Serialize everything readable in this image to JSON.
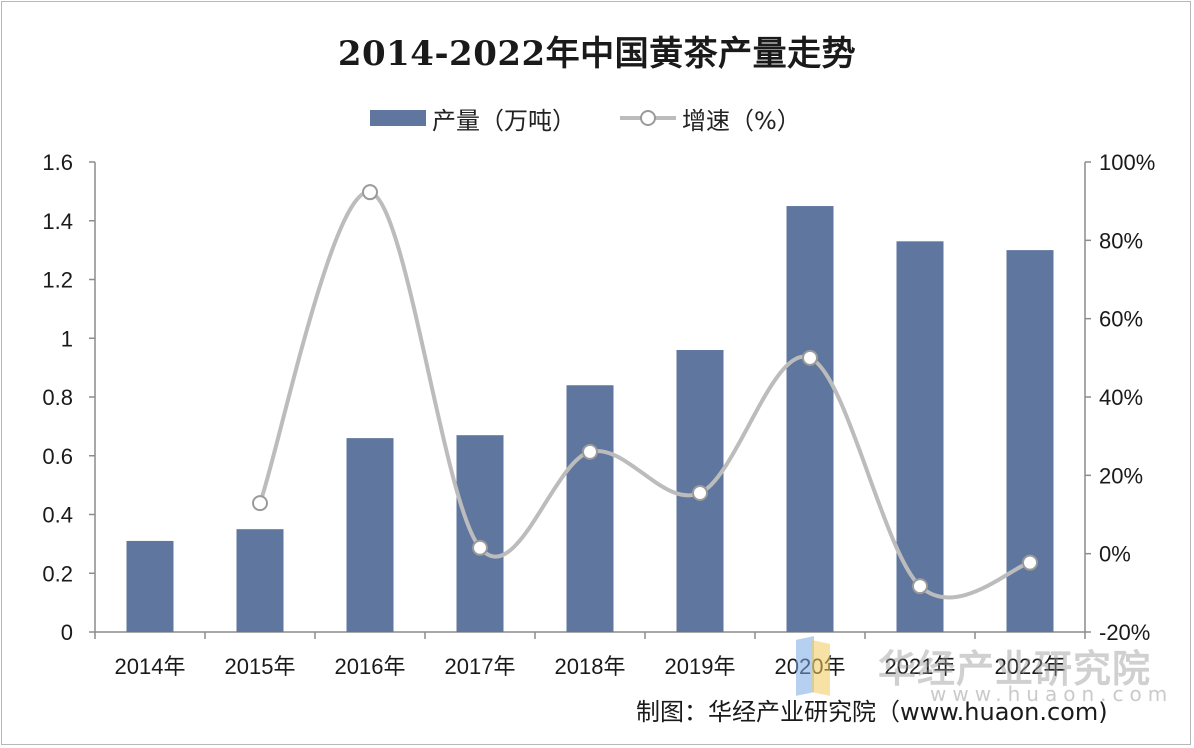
{
  "chart_data": {
    "type": "bar",
    "title": "2014-2022年中国黄茶产量走势",
    "categories": [
      "2014年",
      "2015年",
      "2016年",
      "2017年",
      "2018年",
      "2019年",
      "2020年",
      "2021年",
      "2022年"
    ],
    "series": [
      {
        "name": "产量（万吨）",
        "type": "bar",
        "axis": "left",
        "color": "#5f769f",
        "values": [
          0.31,
          0.35,
          0.66,
          0.67,
          0.84,
          0.96,
          1.45,
          1.33,
          1.3
        ]
      },
      {
        "name": "增速（%）",
        "type": "line",
        "smooth": true,
        "axis": "right",
        "color": "#bcbcbc",
        "values": [
          null,
          12.9,
          92.3,
          1.5,
          26.0,
          15.5,
          50.0,
          -8.3,
          -2.3
        ]
      }
    ],
    "y_left": {
      "ylim": [
        0,
        1.6
      ],
      "ticks": [
        "0",
        "0.2",
        "0.4",
        "0.6",
        "0.8",
        "1",
        "1.2",
        "1.4",
        "1.6"
      ]
    },
    "y_right": {
      "ylim": [
        -20,
        100
      ],
      "ticks": [
        "-20%",
        "0%",
        "20%",
        "40%",
        "60%",
        "80%",
        "100%"
      ]
    },
    "grid": false,
    "legend_position": "top-center"
  },
  "source": "制图：华经产业研究院（www.huaon.com)",
  "watermark": {
    "text": "华经产业研究院",
    "url": "www.huaon.com"
  }
}
